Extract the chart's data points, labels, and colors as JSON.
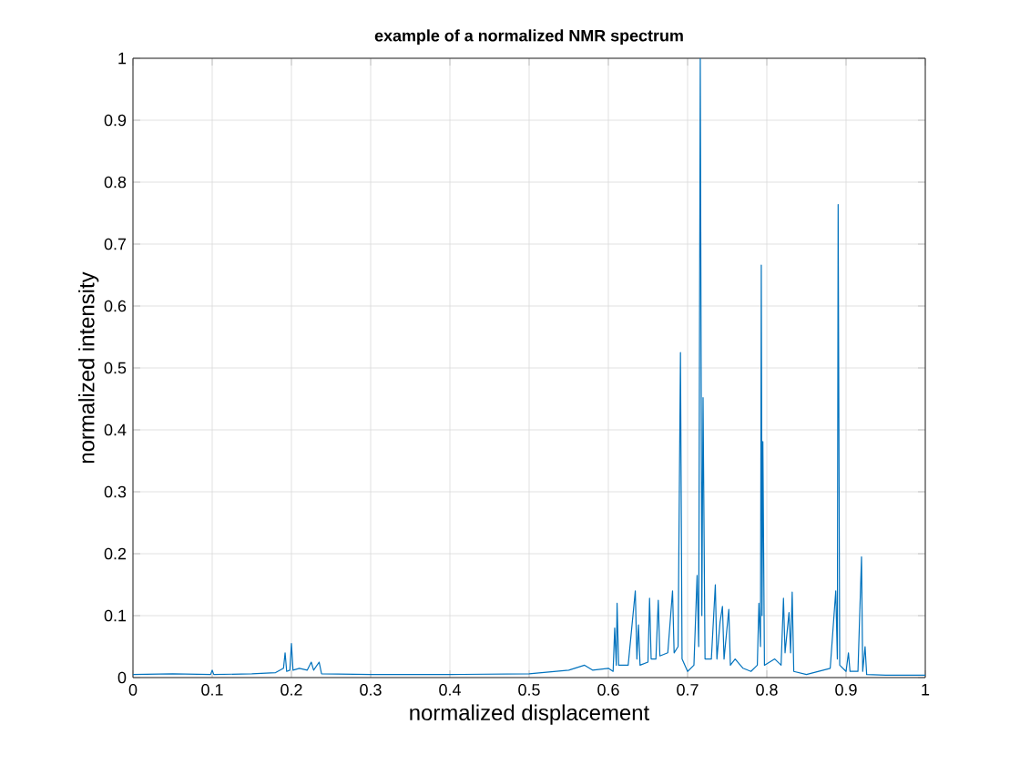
{
  "chart_data": {
    "type": "line",
    "title": "example of a normalized NMR spectrum",
    "xlabel": "normalized displacement",
    "ylabel": "normalized intensity",
    "xlim": [
      0,
      1
    ],
    "ylim": [
      0,
      1
    ],
    "xticks": [
      0,
      0.1,
      0.2,
      0.3,
      0.4,
      0.5,
      0.6,
      0.7,
      0.8,
      0.9,
      1
    ],
    "yticks": [
      0,
      0.1,
      0.2,
      0.3,
      0.4,
      0.5,
      0.6,
      0.7,
      0.8,
      0.9,
      1
    ],
    "grid": true,
    "series": [
      {
        "color": "#0072bd",
        "x": [
          0,
          0.05,
          0.098,
          0.1,
          0.102,
          0.15,
          0.18,
          0.19,
          0.192,
          0.194,
          0.198,
          0.2,
          0.202,
          0.21,
          0.22,
          0.225,
          0.228,
          0.235,
          0.238,
          0.3,
          0.4,
          0.5,
          0.55,
          0.57,
          0.58,
          0.6,
          0.606,
          0.608,
          0.61,
          0.611,
          0.613,
          0.625,
          0.634,
          0.636,
          0.638,
          0.64,
          0.65,
          0.652,
          0.654,
          0.66,
          0.663,
          0.665,
          0.675,
          0.681,
          0.683,
          0.688,
          0.691,
          0.693,
          0.7,
          0.708,
          0.712,
          0.714,
          0.716,
          0.718,
          0.7195,
          0.722,
          0.73,
          0.735,
          0.737,
          0.741,
          0.744,
          0.746,
          0.752,
          0.754,
          0.76,
          0.77,
          0.78,
          0.788,
          0.79,
          0.792,
          0.793,
          0.794,
          0.795,
          0.797,
          0.81,
          0.818,
          0.821,
          0.823,
          0.828,
          0.83,
          0.832,
          0.834,
          0.85,
          0.88,
          0.887,
          0.889,
          0.89,
          0.892,
          0.9,
          0.903,
          0.905,
          0.915,
          0.9195,
          0.921,
          0.924,
          0.926,
          0.95,
          1
        ],
        "values": [
          0.005,
          0.006,
          0.005,
          0.012,
          0.005,
          0.006,
          0.008,
          0.015,
          0.04,
          0.01,
          0.012,
          0.055,
          0.012,
          0.015,
          0.012,
          0.025,
          0.012,
          0.025,
          0.006,
          0.005,
          0.005,
          0.006,
          0.012,
          0.02,
          0.012,
          0.015,
          0.01,
          0.08,
          0.02,
          0.12,
          0.02,
          0.02,
          0.14,
          0.03,
          0.085,
          0.02,
          0.025,
          0.128,
          0.03,
          0.03,
          0.125,
          0.035,
          0.04,
          0.14,
          0.04,
          0.05,
          0.525,
          0.03,
          0.01,
          0.02,
          0.165,
          0.05,
          1.0,
          0.1,
          0.452,
          0.03,
          0.03,
          0.15,
          0.03,
          0.09,
          0.115,
          0.03,
          0.11,
          0.02,
          0.03,
          0.015,
          0.01,
          0.02,
          0.12,
          0.05,
          0.666,
          0.1,
          0.381,
          0.02,
          0.03,
          0.02,
          0.128,
          0.04,
          0.105,
          0.04,
          0.138,
          0.01,
          0.005,
          0.015,
          0.14,
          0.03,
          0.764,
          0.02,
          0.01,
          0.04,
          0.01,
          0.01,
          0.195,
          0.01,
          0.05,
          0.005,
          0.004,
          0.004
        ]
      }
    ]
  }
}
